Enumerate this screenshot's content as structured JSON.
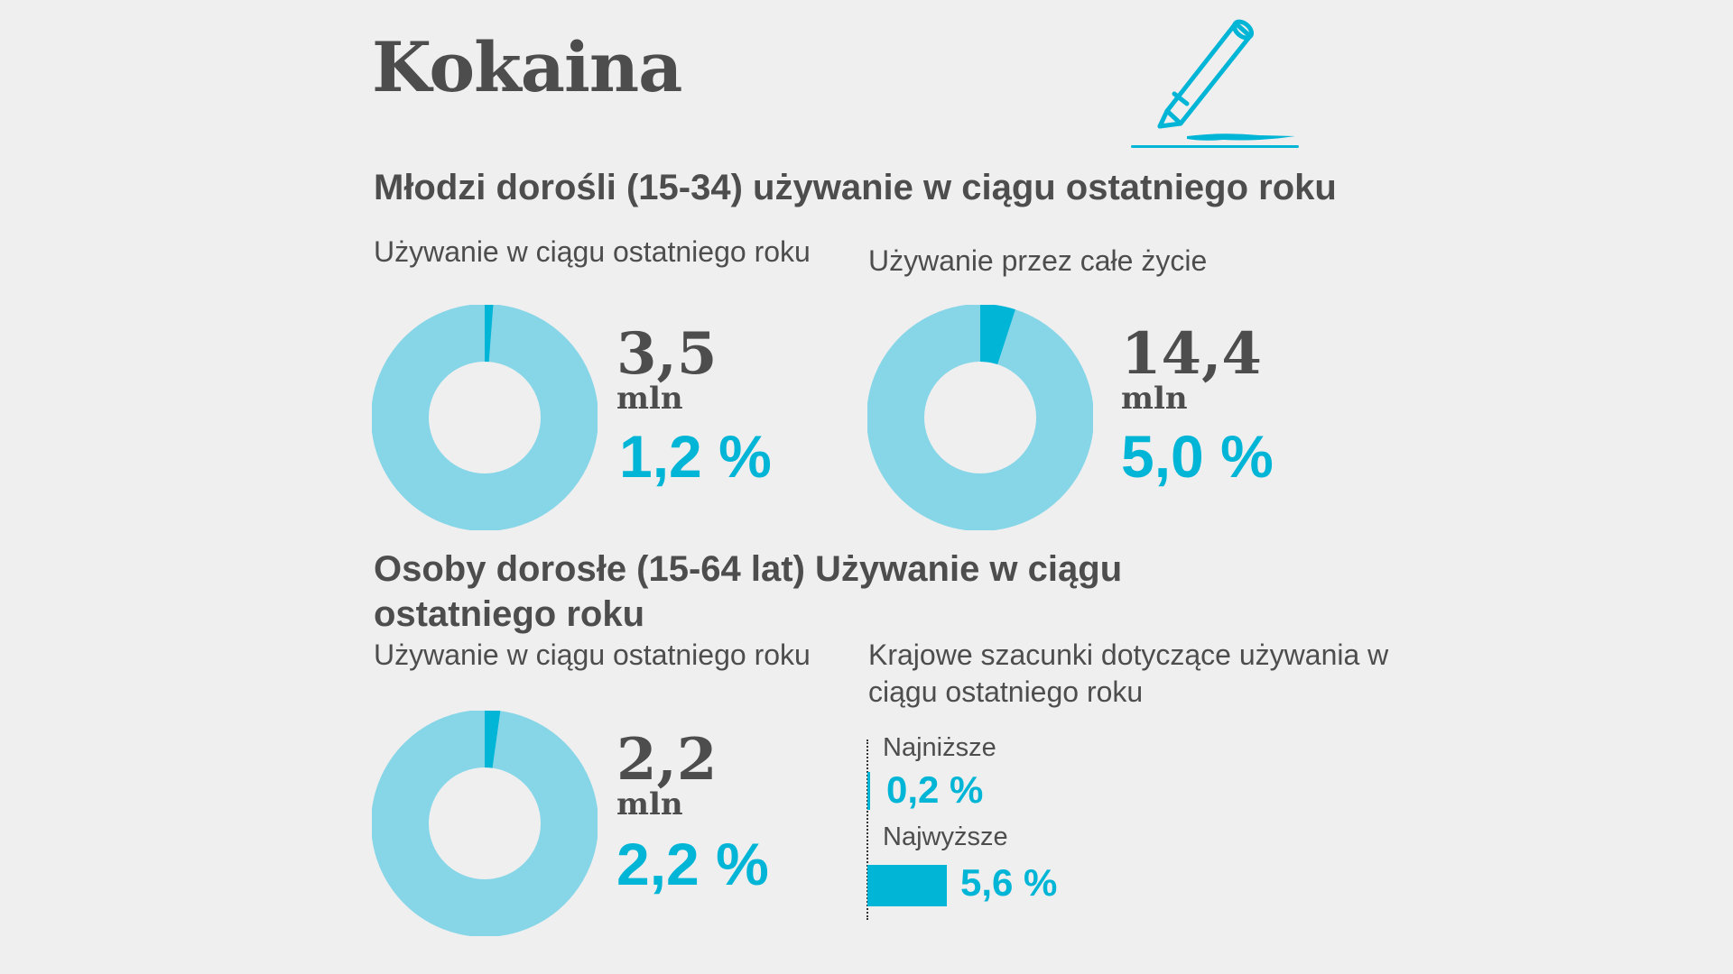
{
  "title": "Kokaina",
  "colors": {
    "accent": "#00b5d6",
    "light": "#87d6e8",
    "text": "#4d4d4d",
    "background": "#efefef"
  },
  "icon": "pencil-and-lines-icon",
  "young_adults": {
    "heading": "Młodzi dorośli (15-34) używanie w ciągu ostatniego roku",
    "last_year": {
      "label": "Używanie w ciągu ostatniego roku",
      "count": "3,5",
      "unit": "mln",
      "percent": "1,2 %"
    },
    "lifetime": {
      "label": "Używanie przez całe życie",
      "count": "14,4",
      "unit": "mln",
      "percent": "5,0 %"
    }
  },
  "adults": {
    "heading": "Osoby dorosłe (15-64 lat) Używanie w ciągu ostatniego roku",
    "last_year": {
      "label": "Używanie w ciągu ostatniego roku",
      "count": "2,2",
      "unit": "mln",
      "percent": "2,2 %"
    },
    "national": {
      "label": "Krajowe szacunki dotyczące używania w ciągu ostatniego roku",
      "lowest_label": "Najniższe",
      "lowest_value": "0,2 %",
      "highest_label": "Najwyższe",
      "highest_value": "5,6 %"
    }
  },
  "chart_data": [
    {
      "type": "pie",
      "title": "Używanie w ciągu ostatniego roku",
      "group": "Młodzi dorośli (15-34)",
      "values": [
        1.2,
        98.8
      ],
      "highlight": "1,2 %",
      "count": "3,5 mln"
    },
    {
      "type": "pie",
      "title": "Używanie przez całe życie",
      "group": "Młodzi dorośli (15-34)",
      "values": [
        5.0,
        95.0
      ],
      "highlight": "5,0 %",
      "count": "14,4 mln"
    },
    {
      "type": "pie",
      "title": "Używanie w ciągu ostatniego roku",
      "group": "Osoby dorosłe (15-64 lat)",
      "values": [
        2.2,
        97.8
      ],
      "highlight": "2,2 %",
      "count": "2,2 mln"
    },
    {
      "type": "bar",
      "title": "Krajowe szacunki dotyczące używania w ciągu ostatniego roku",
      "categories": [
        "Najniższe",
        "Najwyższe"
      ],
      "values": [
        0.2,
        5.6
      ]
    }
  ]
}
